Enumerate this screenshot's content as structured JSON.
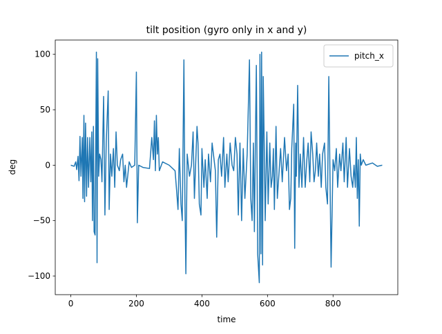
{
  "chart_data": {
    "type": "line",
    "title": "tilt position (gyro only in x and y)",
    "xlabel": "time",
    "ylabel": "deg",
    "xlim": [
      -47.5,
      997.5
    ],
    "ylim": [
      -116.8,
      112.9
    ],
    "xticks": [
      0,
      200,
      400,
      600,
      800
    ],
    "yticks": [
      {
        "value": -100,
        "label": "−100"
      },
      {
        "value": -50,
        "label": "−50"
      },
      0,
      50,
      100
    ],
    "legend": "upper right",
    "x": [
      0,
      10,
      15,
      18,
      22,
      25,
      28,
      31,
      35,
      37,
      40,
      42,
      45,
      48,
      51,
      54,
      58,
      61,
      64,
      66,
      69,
      71,
      74,
      78,
      80,
      82,
      85,
      88,
      92,
      95,
      100,
      104,
      108,
      114,
      117,
      121,
      125,
      130,
      134,
      138,
      142,
      148,
      152,
      158,
      162,
      166,
      170,
      178,
      185,
      195,
      200,
      203,
      207,
      220,
      240,
      247,
      252,
      255,
      258,
      261,
      264,
      267,
      270,
      280,
      300,
      318,
      322,
      327,
      331,
      336,
      340,
      345,
      348,
      351,
      355,
      362,
      368,
      373,
      377,
      385,
      388,
      392,
      397,
      400,
      406,
      410,
      416,
      420,
      426,
      431,
      441,
      445,
      450,
      455,
      460,
      466,
      470,
      476,
      480,
      486,
      492,
      497,
      502,
      507,
      511,
      516,
      521,
      526,
      531,
      538,
      545,
      549,
      553,
      557,
      560,
      563,
      566,
      570,
      575,
      577,
      580,
      582,
      585,
      587,
      590,
      593,
      598,
      602,
      607,
      611,
      615,
      618,
      621,
      626,
      630,
      640,
      645,
      652,
      658,
      663,
      667,
      671,
      674,
      680,
      683,
      686,
      688,
      692,
      696,
      700,
      705,
      710,
      715,
      720,
      724,
      729,
      733,
      738,
      742,
      746,
      750,
      755,
      759,
      764,
      768,
      774,
      778,
      783,
      787,
      794,
      800,
      805,
      810,
      814,
      820,
      824,
      830,
      834,
      840,
      844,
      850,
      855,
      860,
      864,
      868,
      871,
      874,
      877,
      880,
      883,
      886,
      892,
      900,
      920,
      935,
      950
    ],
    "series": [
      {
        "name": "pitch_x",
        "color": "#1f77b4",
        "values": [
          0,
          -1,
          3,
          -4,
          8,
          -14,
          26,
          -10,
          25,
          -30,
          45,
          -33,
          38,
          -28,
          25,
          -20,
          25,
          -15,
          30,
          -50,
          35,
          -60,
          -63,
          102,
          -88,
          96,
          -10,
          10,
          5,
          -15,
          62,
          -45,
          20,
          67,
          -40,
          10,
          -10,
          15,
          -20,
          30,
          0,
          -5,
          5,
          10,
          -15,
          0,
          -20,
          3,
          -2,
          0,
          84,
          -52,
          0,
          -2,
          -3,
          25,
          5,
          40,
          -5,
          45,
          10,
          25,
          -5,
          3,
          0,
          -5,
          -20,
          -40,
          15,
          -35,
          -50,
          95,
          -30,
          -98,
          10,
          -10,
          0,
          30,
          -30,
          35,
          20,
          -35,
          -45,
          15,
          -20,
          5,
          -30,
          10,
          -15,
          20,
          -5,
          -65,
          5,
          10,
          -10,
          25,
          -20,
          10,
          -15,
          20,
          0,
          -5,
          25,
          10,
          -45,
          20,
          -50,
          15,
          -30,
          10,
          95,
          -30,
          -50,
          20,
          -60,
          20,
          90,
          -80,
          -106,
          100,
          -80,
          102,
          -90,
          80,
          20,
          -50,
          30,
          -35,
          20,
          -20,
          -10,
          15,
          -40,
          35,
          -30,
          15,
          -15,
          25,
          -5,
          10,
          -40,
          -30,
          15,
          55,
          -75,
          20,
          -10,
          72,
          -20,
          10,
          -20,
          25,
          -20,
          5,
          20,
          -15,
          30,
          10,
          -15,
          -5,
          20,
          -10,
          10,
          -20,
          10,
          20,
          -20,
          -35,
          80,
          -92,
          5,
          -5,
          15,
          -20,
          10,
          -5,
          20,
          -15,
          25,
          -20,
          15,
          -10,
          -20,
          0,
          -20,
          25,
          -30,
          5,
          -55,
          10,
          0,
          5,
          0,
          2,
          -1,
          0
        ]
      }
    ]
  }
}
